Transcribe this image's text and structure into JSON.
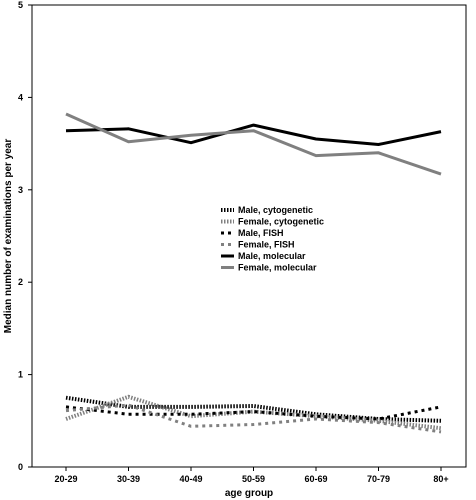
{
  "chart_data": {
    "type": "line",
    "xlabel": "age group",
    "ylabel": "Median number of examinations per year",
    "ylim": [
      0,
      5
    ],
    "yticks": [
      "0",
      "1",
      "2",
      "3",
      "4",
      "5"
    ],
    "categories": [
      "20-29",
      "30-39",
      "40-49",
      "50-59",
      "60-69",
      "70-79",
      "80+"
    ],
    "legend_position": "center",
    "series": [
      {
        "name": "Male, cytogenetic",
        "color": "#000000",
        "style": "dotted-thick",
        "values": [
          0.75,
          0.65,
          0.65,
          0.66,
          0.57,
          0.52,
          0.5
        ]
      },
      {
        "name": "Female, cytogenetic",
        "color": "#808080",
        "style": "dotted-thick",
        "values": [
          0.52,
          0.76,
          0.55,
          0.6,
          0.55,
          0.5,
          0.42
        ]
      },
      {
        "name": "Male, FISH",
        "color": "#000000",
        "style": "dashed",
        "values": [
          0.65,
          0.57,
          0.57,
          0.6,
          0.55,
          0.52,
          0.65
        ]
      },
      {
        "name": "Female, FISH",
        "color": "#808080",
        "style": "dashed",
        "values": [
          0.61,
          0.67,
          0.44,
          0.46,
          0.52,
          0.48,
          0.38
        ]
      },
      {
        "name": "Male, molecular",
        "color": "#000000",
        "style": "solid",
        "values": [
          3.64,
          3.66,
          3.51,
          3.7,
          3.55,
          3.49,
          3.63
        ]
      },
      {
        "name": "Female, molecular",
        "color": "#808080",
        "style": "solid",
        "values": [
          3.82,
          3.52,
          3.59,
          3.64,
          3.37,
          3.4,
          3.17
        ]
      }
    ]
  }
}
